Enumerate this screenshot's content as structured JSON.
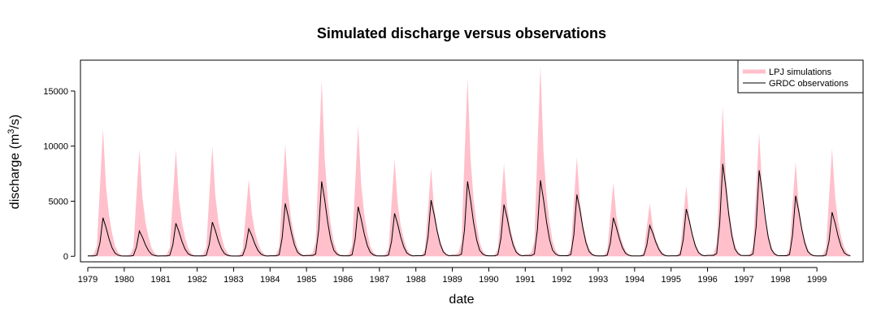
{
  "chart_data": {
    "type": "area",
    "title": "Simulated discharge versus observations",
    "xlabel": "date",
    "ylabel": "discharge (m",
    "ylabel_sup": "3",
    "ylabel_tail": "/s)",
    "x_range": [
      "1979-01",
      "1999-12"
    ],
    "ylim": [
      -500,
      17800
    ],
    "yticks": [
      0,
      5000,
      10000,
      15000
    ],
    "year_ticks": [
      "1979",
      "1980",
      "1981",
      "1982",
      "1983",
      "1984",
      "1985",
      "1986",
      "1987",
      "1988",
      "1989",
      "1990",
      "1991",
      "1992",
      "1993",
      "1994",
      "1995",
      "1996",
      "1997",
      "1998",
      "1999"
    ],
    "legend_position": "top-right",
    "series": [
      {
        "name": "LPJ simulations",
        "style": "area",
        "color": "#FFC0CB",
        "annual_peaks": [
          {
            "year": 1979,
            "peak": 11600
          },
          {
            "year": 1980,
            "peak": 9700
          },
          {
            "year": 1981,
            "peak": 9700
          },
          {
            "year": 1982,
            "peak": 10000
          },
          {
            "year": 1983,
            "peak": 7000
          },
          {
            "year": 1984,
            "peak": 10200
          },
          {
            "year": 1985,
            "peak": 16000
          },
          {
            "year": 1986,
            "peak": 11900
          },
          {
            "year": 1987,
            "peak": 8800
          },
          {
            "year": 1988,
            "peak": 8000
          },
          {
            "year": 1989,
            "peak": 16200
          },
          {
            "year": 1990,
            "peak": 8400
          },
          {
            "year": 1991,
            "peak": 17300
          },
          {
            "year": 1992,
            "peak": 9000
          },
          {
            "year": 1993,
            "peak": 6700
          },
          {
            "year": 1994,
            "peak": 4800
          },
          {
            "year": 1995,
            "peak": 6400
          },
          {
            "year": 1996,
            "peak": 13600
          },
          {
            "year": 1997,
            "peak": 11200
          },
          {
            "year": 1998,
            "peak": 8600
          },
          {
            "year": 1999,
            "peak": 9800
          }
        ]
      },
      {
        "name": "GRDC observations",
        "style": "line",
        "color": "#000000",
        "annual_peaks": [
          {
            "year": 1979,
            "peak": 3500
          },
          {
            "year": 1980,
            "peak": 2300
          },
          {
            "year": 1981,
            "peak": 3000
          },
          {
            "year": 1982,
            "peak": 3100
          },
          {
            "year": 1983,
            "peak": 2500
          },
          {
            "year": 1984,
            "peak": 4800
          },
          {
            "year": 1985,
            "peak": 6800
          },
          {
            "year": 1986,
            "peak": 4500
          },
          {
            "year": 1987,
            "peak": 3900
          },
          {
            "year": 1988,
            "peak": 5100
          },
          {
            "year": 1989,
            "peak": 6800
          },
          {
            "year": 1990,
            "peak": 4700
          },
          {
            "year": 1991,
            "peak": 6900
          },
          {
            "year": 1992,
            "peak": 5600
          },
          {
            "year": 1993,
            "peak": 3500
          },
          {
            "year": 1994,
            "peak": 2800
          },
          {
            "year": 1995,
            "peak": 4300
          },
          {
            "year": 1996,
            "peak": 8400
          },
          {
            "year": 1997,
            "peak": 7800
          },
          {
            "year": 1998,
            "peak": 5500
          },
          {
            "year": 1999,
            "peak": 4000
          }
        ]
      }
    ]
  }
}
